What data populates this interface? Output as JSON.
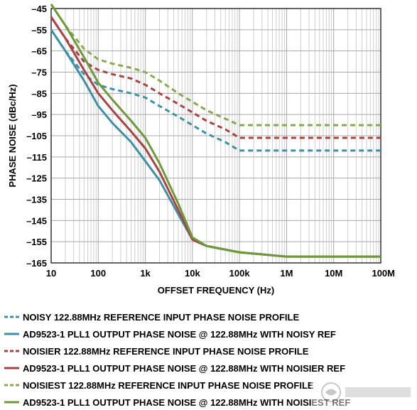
{
  "chart_data": {
    "type": "line",
    "title": "",
    "xlabel": "OFFSET FREQUENCY (Hz)",
    "ylabel": "PHASE NOISE (dBc/Hz)",
    "x_scale": "log",
    "xlim": [
      10,
      100000000
    ],
    "ylim": [
      -165,
      -45
    ],
    "grid": true,
    "legend_position": "bottom",
    "x_ticks": [
      {
        "value": 10,
        "label": "10"
      },
      {
        "value": 100,
        "label": "100"
      },
      {
        "value": 1000,
        "label": "1k"
      },
      {
        "value": 10000,
        "label": "10k"
      },
      {
        "value": 100000,
        "label": "100k"
      },
      {
        "value": 1000000,
        "label": "1M"
      },
      {
        "value": 10000000,
        "label": "10M"
      },
      {
        "value": 100000000,
        "label": "100M"
      }
    ],
    "y_ticks": [
      {
        "value": -45,
        "label": "–45"
      },
      {
        "value": -55,
        "label": "–55"
      },
      {
        "value": -65,
        "label": "–65"
      },
      {
        "value": -75,
        "label": "–75"
      },
      {
        "value": -85,
        "label": "–85"
      },
      {
        "value": -95,
        "label": "–95"
      },
      {
        "value": -105,
        "label": "–105"
      },
      {
        "value": -115,
        "label": "–115"
      },
      {
        "value": -125,
        "label": "–125"
      },
      {
        "value": -135,
        "label": "–135"
      },
      {
        "value": -145,
        "label": "–145"
      },
      {
        "value": -155,
        "label": "–155"
      },
      {
        "value": -165,
        "label": "–165"
      }
    ],
    "series": [
      {
        "name": "NOISY 122.88MHz REFERENCE INPUT PHASE NOISE PROFILE",
        "color": "#3f8fa7",
        "style": "dashed",
        "points": [
          [
            10,
            -55
          ],
          [
            20,
            -65
          ],
          [
            50,
            -76
          ],
          [
            100,
            -81
          ],
          [
            200,
            -83
          ],
          [
            500,
            -85
          ],
          [
            1000,
            -87
          ],
          [
            2000,
            -91
          ],
          [
            5000,
            -96
          ],
          [
            10000,
            -100
          ],
          [
            20000,
            -104
          ],
          [
            50000,
            -108
          ],
          [
            100000,
            -112
          ],
          [
            1000000,
            -112
          ],
          [
            100000000,
            -112
          ]
        ]
      },
      {
        "name": "AD9523-1 PLL1 OUTPUT PHASE NOISE @ 122.88MHz WITH NOISY REF",
        "color": "#3f8fa7",
        "style": "solid",
        "points": [
          [
            10,
            -55
          ],
          [
            20,
            -65
          ],
          [
            50,
            -79
          ],
          [
            100,
            -91
          ],
          [
            200,
            -99
          ],
          [
            500,
            -108
          ],
          [
            1000,
            -117
          ],
          [
            2000,
            -126
          ],
          [
            5000,
            -142
          ],
          [
            10000,
            -154
          ],
          [
            20000,
            -157
          ],
          [
            100000,
            -160
          ],
          [
            1000000,
            -162
          ],
          [
            100000000,
            -162
          ]
        ]
      },
      {
        "name": "NOISIER 122.88MHz REFERENCE INPUT PHASE NOISE PROFILE",
        "color": "#a84342",
        "style": "dashed",
        "points": [
          [
            10,
            -49
          ],
          [
            20,
            -59
          ],
          [
            50,
            -70
          ],
          [
            100,
            -74
          ],
          [
            200,
            -76
          ],
          [
            500,
            -78
          ],
          [
            1000,
            -81
          ],
          [
            2000,
            -85
          ],
          [
            5000,
            -90
          ],
          [
            10000,
            -94
          ],
          [
            20000,
            -98
          ],
          [
            50000,
            -102
          ],
          [
            100000,
            -106
          ],
          [
            1000000,
            -106
          ],
          [
            100000000,
            -106
          ]
        ]
      },
      {
        "name": "AD9523-1 PLL1 OUTPUT PHASE NOISE @ 122.88MHz WITH NOISIER REF",
        "color": "#a84342",
        "style": "solid",
        "points": [
          [
            10,
            -49
          ],
          [
            20,
            -59
          ],
          [
            50,
            -74
          ],
          [
            100,
            -85
          ],
          [
            200,
            -93
          ],
          [
            500,
            -103
          ],
          [
            1000,
            -111
          ],
          [
            2000,
            -122
          ],
          [
            5000,
            -140
          ],
          [
            10000,
            -154
          ],
          [
            20000,
            -157
          ],
          [
            100000,
            -160
          ],
          [
            1000000,
            -162
          ],
          [
            100000000,
            -162
          ]
        ]
      },
      {
        "name": "NOISIEST 122.88MHz REFERENCE INPUT PHASE NOISE PROFILE",
        "color": "#8aa852",
        "style": "dashed",
        "points": [
          [
            10,
            -43
          ],
          [
            20,
            -53
          ],
          [
            50,
            -64
          ],
          [
            100,
            -69
          ],
          [
            200,
            -71
          ],
          [
            500,
            -73
          ],
          [
            1000,
            -75
          ],
          [
            2000,
            -79
          ],
          [
            5000,
            -85
          ],
          [
            10000,
            -89
          ],
          [
            20000,
            -93
          ],
          [
            50000,
            -97
          ],
          [
            100000,
            -100
          ],
          [
            1000000,
            -100
          ],
          [
            100000000,
            -100
          ]
        ]
      },
      {
        "name": "AD9523-1 PLL1 OUTPUT PHASE NOISE @ 122.88MHz WITH NOISIEST REF",
        "color": "#6e9a3b",
        "style": "solid",
        "points": [
          [
            10,
            -43
          ],
          [
            20,
            -53
          ],
          [
            50,
            -68
          ],
          [
            100,
            -80
          ],
          [
            200,
            -88
          ],
          [
            500,
            -98
          ],
          [
            1000,
            -106
          ],
          [
            2000,
            -118
          ],
          [
            5000,
            -137
          ],
          [
            10000,
            -153
          ],
          [
            20000,
            -157
          ],
          [
            100000,
            -160
          ],
          [
            1000000,
            -162
          ],
          [
            100000000,
            -162
          ]
        ]
      }
    ]
  }
}
